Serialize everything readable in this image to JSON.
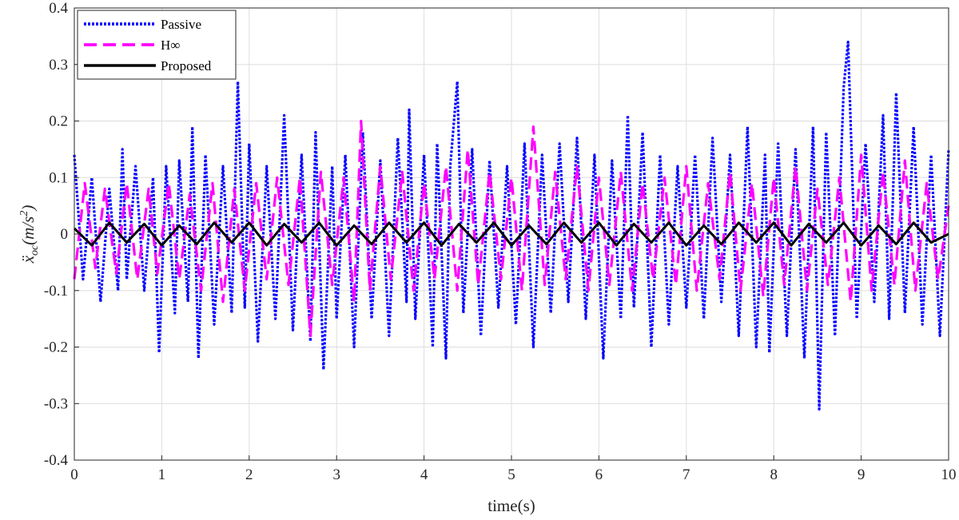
{
  "chart_data": {
    "type": "line",
    "title": "",
    "xlabel": "time(s)",
    "ylabel_parts": {
      "base": "ẍ",
      "sub": "oc",
      "unit_open": "(m/s",
      "sup": "2",
      "unit_close": ")"
    },
    "xlim": [
      0,
      10
    ],
    "ylim": [
      -0.4,
      0.4
    ],
    "xticks": [
      0,
      1,
      2,
      3,
      4,
      5,
      6,
      7,
      8,
      9,
      10
    ],
    "yticks": [
      0.4,
      0.3,
      0.2,
      0.1,
      0,
      -0.1,
      -0.2,
      -0.3,
      -0.4
    ],
    "xtick_labels": [
      "0",
      "1",
      "2",
      "3",
      "4",
      "5",
      "6",
      "7",
      "8",
      "9",
      "10"
    ],
    "ytick_labels": [
      "0.4",
      "0.3",
      "0.2",
      "0.1",
      "0",
      "-0.1",
      "-0.2",
      "-0.3",
      "-0.4"
    ],
    "grid": true,
    "legend_position": "top-left",
    "series": [
      {
        "name": "Passive",
        "color": "#0000ff",
        "style": "dotted",
        "x": [
          0,
          0.1,
          0.2,
          0.3,
          0.4,
          0.5,
          0.55,
          0.6,
          0.7,
          0.8,
          0.9,
          0.97,
          1.05,
          1.15,
          1.2,
          1.3,
          1.35,
          1.42,
          1.5,
          1.6,
          1.7,
          1.8,
          1.87,
          1.95,
          2.0,
          2.1,
          2.2,
          2.3,
          2.4,
          2.5,
          2.6,
          2.7,
          2.76,
          2.85,
          2.95,
          3.0,
          3.1,
          3.2,
          3.3,
          3.4,
          3.5,
          3.6,
          3.7,
          3.8,
          3.83,
          3.9,
          4.0,
          4.1,
          4.15,
          4.25,
          4.3,
          4.38,
          4.45,
          4.55,
          4.65,
          4.75,
          4.85,
          4.95,
          5.05,
          5.15,
          5.25,
          5.35,
          5.45,
          5.55,
          5.65,
          5.75,
          5.85,
          5.95,
          6.05,
          6.15,
          6.25,
          6.33,
          6.4,
          6.5,
          6.6,
          6.7,
          6.8,
          6.9,
          7.0,
          7.1,
          7.2,
          7.3,
          7.4,
          7.5,
          7.6,
          7.7,
          7.8,
          7.9,
          7.95,
          8.05,
          8.15,
          8.25,
          8.35,
          8.45,
          8.52,
          8.6,
          8.7,
          8.8,
          8.85,
          8.95,
          9.05,
          9.15,
          9.25,
          9.32,
          9.4,
          9.5,
          9.6,
          9.7,
          9.8,
          9.9,
          10.0
        ],
        "y": [
          0.14,
          -0.08,
          0.1,
          -0.12,
          0.08,
          -0.1,
          0.15,
          -0.08,
          0.12,
          -0.1,
          0.1,
          -0.21,
          0.12,
          -0.14,
          0.13,
          -0.12,
          0.19,
          -0.22,
          0.14,
          -0.16,
          0.12,
          -0.14,
          0.27,
          -0.13,
          0.16,
          -0.19,
          0.12,
          -0.15,
          0.21,
          -0.17,
          0.14,
          -0.19,
          0.18,
          -0.24,
          0.12,
          -0.15,
          0.14,
          -0.2,
          0.18,
          -0.15,
          0.13,
          -0.18,
          0.17,
          -0.12,
          0.22,
          -0.15,
          0.14,
          -0.2,
          0.16,
          -0.22,
          0.12,
          0.27,
          -0.14,
          0.15,
          -0.18,
          0.13,
          -0.13,
          0.12,
          -0.16,
          0.16,
          -0.2,
          0.14,
          -0.14,
          0.16,
          -0.12,
          0.17,
          -0.15,
          0.14,
          -0.22,
          0.13,
          -0.15,
          0.21,
          -0.13,
          0.18,
          -0.2,
          0.14,
          -0.16,
          0.12,
          -0.13,
          0.14,
          -0.15,
          0.17,
          -0.12,
          0.14,
          -0.18,
          0.19,
          -0.2,
          0.14,
          -0.21,
          0.16,
          -0.18,
          0.15,
          -0.22,
          0.19,
          -0.31,
          0.18,
          -0.18,
          0.26,
          0.34,
          -0.15,
          0.16,
          -0.12,
          0.21,
          -0.15,
          0.25,
          -0.14,
          0.19,
          -0.16,
          0.14,
          -0.18,
          0.15
        ]
      },
      {
        "name": "H∞",
        "color": "#ff00ff",
        "style": "dashed",
        "x": [
          0,
          0.12,
          0.24,
          0.35,
          0.48,
          0.6,
          0.72,
          0.85,
          0.95,
          1.08,
          1.2,
          1.32,
          1.45,
          1.58,
          1.7,
          1.83,
          1.95,
          2.08,
          2.2,
          2.32,
          2.45,
          2.58,
          2.7,
          2.82,
          2.95,
          3.08,
          3.2,
          3.28,
          3.38,
          3.5,
          3.62,
          3.75,
          3.88,
          4.0,
          4.12,
          4.25,
          4.38,
          4.5,
          4.62,
          4.75,
          4.88,
          5.0,
          5.12,
          5.25,
          5.38,
          5.5,
          5.62,
          5.75,
          5.88,
          6.0,
          6.12,
          6.25,
          6.38,
          6.5,
          6.62,
          6.75,
          6.88,
          7.0,
          7.12,
          7.25,
          7.38,
          7.5,
          7.62,
          7.75,
          7.88,
          8.0,
          8.12,
          8.25,
          8.38,
          8.5,
          8.62,
          8.75,
          8.88,
          9.0,
          9.12,
          9.25,
          9.38,
          9.5,
          9.62,
          9.75,
          9.88,
          10.0
        ],
        "y": [
          -0.08,
          0.09,
          -0.06,
          0.08,
          -0.07,
          0.09,
          -0.08,
          0.08,
          -0.07,
          0.09,
          -0.08,
          0.07,
          -0.1,
          0.09,
          -0.12,
          0.08,
          -0.1,
          0.09,
          -0.08,
          0.1,
          -0.09,
          0.1,
          -0.18,
          0.11,
          -0.09,
          0.1,
          -0.12,
          0.2,
          -0.1,
          0.12,
          -0.08,
          0.11,
          -0.1,
          0.09,
          -0.08,
          0.12,
          -0.1,
          0.15,
          -0.09,
          0.11,
          -0.08,
          0.1,
          -0.1,
          0.19,
          -0.09,
          0.11,
          -0.08,
          0.12,
          -0.1,
          0.1,
          -0.09,
          0.11,
          -0.1,
          0.09,
          -0.08,
          0.1,
          -0.09,
          0.12,
          -0.1,
          0.09,
          -0.08,
          0.11,
          -0.1,
          0.09,
          -0.11,
          0.1,
          -0.09,
          0.12,
          -0.1,
          0.08,
          -0.09,
          0.1,
          -0.12,
          0.14,
          -0.1,
          0.11,
          -0.09,
          0.13,
          -0.1,
          0.09,
          -0.08,
          0.05
        ]
      },
      {
        "name": "Proposed",
        "color": "#000000",
        "style": "solid",
        "x": [
          0,
          0.2,
          0.4,
          0.6,
          0.8,
          1.0,
          1.2,
          1.4,
          1.6,
          1.8,
          2.0,
          2.2,
          2.4,
          2.6,
          2.8,
          3.0,
          3.2,
          3.4,
          3.6,
          3.8,
          4.0,
          4.2,
          4.4,
          4.6,
          4.8,
          5.0,
          5.2,
          5.4,
          5.6,
          5.8,
          6.0,
          6.2,
          6.4,
          6.6,
          6.8,
          7.0,
          7.2,
          7.4,
          7.6,
          7.8,
          8.0,
          8.2,
          8.4,
          8.6,
          8.8,
          9.0,
          9.2,
          9.4,
          9.6,
          9.8,
          10.0
        ],
        "y": [
          0.01,
          -0.02,
          0.02,
          -0.015,
          0.018,
          -0.02,
          0.015,
          -0.018,
          0.02,
          -0.015,
          0.02,
          -0.02,
          0.018,
          -0.015,
          0.02,
          -0.02,
          0.015,
          -0.018,
          0.02,
          -0.015,
          0.02,
          -0.02,
          0.018,
          -0.015,
          0.02,
          -0.02,
          0.015,
          -0.018,
          0.02,
          -0.015,
          0.02,
          -0.02,
          0.018,
          -0.015,
          0.02,
          -0.02,
          0.015,
          -0.018,
          0.02,
          -0.015,
          0.02,
          -0.02,
          0.018,
          -0.015,
          0.02,
          -0.02,
          0.015,
          -0.018,
          0.02,
          -0.015,
          0.0
        ]
      }
    ]
  }
}
